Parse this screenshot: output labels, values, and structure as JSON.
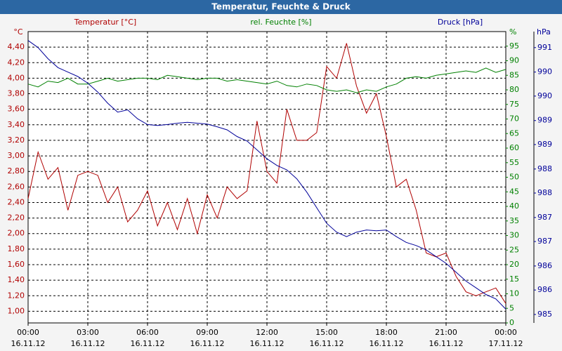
{
  "chart_data": {
    "type": "line",
    "title": "Temperatur, Feuchte & Druck",
    "ylabel": "°C",
    "y2label": "%",
    "y3label": "hPa",
    "grid": true,
    "xlim": [
      0,
      24
    ],
    "xticks": [
      {
        "value": 0,
        "label": "00:00"
      },
      {
        "value": 3,
        "label": "03:00"
      },
      {
        "value": 6,
        "label": "06:00"
      },
      {
        "value": 9,
        "label": "09:00"
      },
      {
        "value": 12,
        "label": "12:00"
      },
      {
        "value": 15,
        "label": "15:00"
      },
      {
        "value": 18,
        "label": "18:00"
      },
      {
        "value": 21,
        "label": "21:00"
      },
      {
        "value": 24,
        "label": "00:00"
      }
    ],
    "xtick_dates": [
      "16.11.12",
      "16.11.12",
      "16.11.12",
      "16.11.12",
      "16.11.12",
      "16.11.12",
      "16.11.12",
      "16.11.12",
      "17.11.12"
    ],
    "ylim": [
      0.85,
      4.6
    ],
    "yticks": [
      {
        "value": 1.0,
        "label": "1,00"
      },
      {
        "value": 1.2,
        "label": "1,20"
      },
      {
        "value": 1.4,
        "label": "1,40"
      },
      {
        "value": 1.6,
        "label": "1,60"
      },
      {
        "value": 1.8,
        "label": "1,80"
      },
      {
        "value": 2.0,
        "label": "2,00"
      },
      {
        "value": 2.2,
        "label": "2,20"
      },
      {
        "value": 2.4,
        "label": "2,40"
      },
      {
        "value": 2.6,
        "label": "2,60"
      },
      {
        "value": 2.8,
        "label": "2,80"
      },
      {
        "value": 3.0,
        "label": "3,00"
      },
      {
        "value": 3.2,
        "label": "3,20"
      },
      {
        "value": 3.4,
        "label": "3,40"
      },
      {
        "value": 3.6,
        "label": "3,60"
      },
      {
        "value": 3.8,
        "label": "3,80"
      },
      {
        "value": 4.0,
        "label": "4,00"
      },
      {
        "value": 4.2,
        "label": "4,20"
      },
      {
        "value": 4.4,
        "label": "4,40"
      }
    ],
    "y2lim": [
      0,
      100
    ],
    "y2ticks": [
      0,
      5,
      10,
      15,
      20,
      25,
      30,
      35,
      40,
      45,
      50,
      55,
      60,
      65,
      70,
      75,
      80,
      85,
      90,
      95
    ],
    "y3lim": [
      984.81,
      991.36
    ],
    "y3ticks": [
      {
        "value": 985.0,
        "label": "985"
      },
      {
        "value": 985.55,
        "label": "986"
      },
      {
        "value": 986.09,
        "label": "986"
      },
      {
        "value": 986.64,
        "label": "987"
      },
      {
        "value": 987.18,
        "label": "987"
      },
      {
        "value": 987.73,
        "label": "988"
      },
      {
        "value": 988.27,
        "label": "988"
      },
      {
        "value": 988.82,
        "label": "989"
      },
      {
        "value": 989.36,
        "label": "989"
      },
      {
        "value": 989.91,
        "label": "990"
      },
      {
        "value": 990.45,
        "label": "990"
      },
      {
        "value": 991.0,
        "label": "991"
      }
    ],
    "x": [
      0,
      0.5,
      1,
      1.5,
      2,
      2.5,
      3,
      3.5,
      4,
      4.5,
      5,
      5.5,
      6,
      6.5,
      7,
      7.5,
      8,
      8.5,
      9,
      9.5,
      10,
      10.5,
      11,
      11.5,
      12,
      12.5,
      13,
      13.5,
      14,
      14.5,
      15,
      15.5,
      16,
      16.5,
      17,
      17.5,
      18,
      18.5,
      19,
      19.5,
      20,
      20.5,
      21,
      21.5,
      22,
      22.5,
      23,
      23.5,
      24
    ],
    "series": [
      {
        "name": "Temperatur [°C]",
        "color": "#b00000",
        "axis": "y",
        "values": [
          2.45,
          3.05,
          2.7,
          2.85,
          2.3,
          2.75,
          2.8,
          2.75,
          2.4,
          2.6,
          2.15,
          2.3,
          2.55,
          2.1,
          2.4,
          2.05,
          2.45,
          2.0,
          2.5,
          2.2,
          2.6,
          2.45,
          2.55,
          3.45,
          2.8,
          2.65,
          3.6,
          3.2,
          3.2,
          3.3,
          4.15,
          4.0,
          4.45,
          3.9,
          3.55,
          3.8,
          3.25,
          2.6,
          2.7,
          2.3,
          1.75,
          1.7,
          1.75,
          1.45,
          1.25,
          1.2,
          1.25,
          1.3,
          1.1
        ]
      },
      {
        "name": "rel. Feuchte [%]",
        "color": "#008000",
        "axis": "y2",
        "values": [
          82,
          81,
          83,
          82.5,
          84,
          82,
          82,
          83,
          84,
          83,
          83.5,
          84,
          84,
          83.5,
          85,
          84.5,
          84,
          83.5,
          84,
          84,
          83,
          83.5,
          83,
          82.5,
          82,
          83,
          81.5,
          81,
          82,
          81.5,
          80,
          79.5,
          80,
          79,
          80,
          79.5,
          81,
          82,
          84,
          84.5,
          84,
          85,
          85.5,
          86,
          86.5,
          86,
          87.5,
          86,
          87
        ]
      },
      {
        "name": "Druck [hPa]",
        "color": "#000099",
        "axis": "y3",
        "values": [
          991.16,
          991.0,
          990.75,
          990.55,
          990.45,
          990.35,
          990.2,
          990.0,
          989.75,
          989.55,
          989.6,
          989.4,
          989.27,
          989.25,
          989.27,
          989.3,
          989.32,
          989.3,
          989.28,
          989.22,
          989.15,
          989.0,
          988.9,
          988.7,
          988.5,
          988.35,
          988.25,
          988.05,
          987.75,
          987.4,
          987.05,
          986.85,
          986.75,
          986.85,
          986.9,
          986.88,
          986.9,
          986.75,
          986.62,
          986.55,
          986.45,
          986.3,
          986.15,
          985.95,
          985.75,
          985.6,
          985.45,
          985.35,
          985.12
        ]
      }
    ]
  }
}
